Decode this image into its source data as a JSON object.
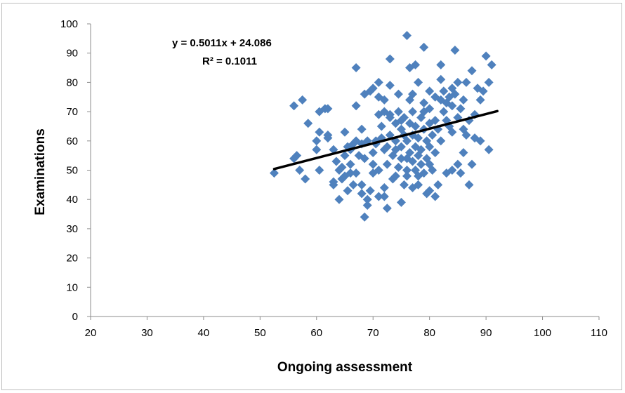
{
  "chart_data": {
    "type": "scatter",
    "xlabel": "Ongoing assessment",
    "ylabel": "Examinations",
    "xlim": [
      20,
      110
    ],
    "ylim": [
      0,
      100
    ],
    "xticks": [
      "20",
      "30",
      "40",
      "50",
      "60",
      "70",
      "80",
      "90",
      "100",
      "110"
    ],
    "yticks": [
      "0",
      "10",
      "20",
      "30",
      "40",
      "50",
      "60",
      "70",
      "80",
      "90",
      "100"
    ],
    "grid": false,
    "marker_color": "#4f81bd",
    "trendline_color": "#000000",
    "trendline": {
      "slope": 0.5011,
      "intercept": 24.086,
      "x_range": [
        52.5,
        92
      ]
    },
    "annotations": {
      "equation": "y = 0.5011x + 24.086",
      "r2": "R² = 0.1011"
    },
    "points": [
      [
        52.5,
        49
      ],
      [
        56,
        54
      ],
      [
        56,
        72
      ],
      [
        56.5,
        55
      ],
      [
        57,
        50
      ],
      [
        57.5,
        74
      ],
      [
        58,
        47
      ],
      [
        58.5,
        66
      ],
      [
        60,
        57
      ],
      [
        60,
        60
      ],
      [
        60.5,
        63
      ],
      [
        60.5,
        70
      ],
      [
        60.5,
        50
      ],
      [
        61.5,
        71
      ],
      [
        62,
        61
      ],
      [
        62,
        62
      ],
      [
        63,
        45
      ],
      [
        63,
        46
      ],
      [
        63.5,
        53
      ],
      [
        64,
        40
      ],
      [
        64,
        50
      ],
      [
        64.5,
        51
      ],
      [
        64.5,
        47
      ],
      [
        65,
        63
      ],
      [
        65,
        55
      ],
      [
        65,
        48
      ],
      [
        65.5,
        58
      ],
      [
        65.5,
        43
      ],
      [
        66,
        57
      ],
      [
        66,
        52
      ],
      [
        66.5,
        45
      ],
      [
        66.5,
        59
      ],
      [
        67,
        60
      ],
      [
        67,
        72
      ],
      [
        67,
        85
      ],
      [
        67,
        49
      ],
      [
        67.5,
        55
      ],
      [
        68,
        64
      ],
      [
        68,
        42
      ],
      [
        68,
        59
      ],
      [
        68.5,
        34
      ],
      [
        68.5,
        76
      ],
      [
        68.5,
        54
      ],
      [
        69,
        38
      ],
      [
        69,
        40
      ],
      [
        69,
        60
      ],
      [
        69.5,
        77
      ],
      [
        69.5,
        43
      ],
      [
        70,
        49
      ],
      [
        70,
        52
      ],
      [
        70,
        56
      ],
      [
        70,
        78
      ],
      [
        70.5,
        60
      ],
      [
        71,
        80
      ],
      [
        71,
        69
      ],
      [
        71,
        75
      ],
      [
        71,
        50
      ],
      [
        71.5,
        61
      ],
      [
        71.5,
        65
      ],
      [
        72,
        41
      ],
      [
        72,
        44
      ],
      [
        72,
        57
      ],
      [
        72,
        70
      ],
      [
        72,
        74
      ],
      [
        72.5,
        37
      ],
      [
        72.5,
        52
      ],
      [
        72.5,
        58
      ],
      [
        73,
        88
      ],
      [
        73,
        79
      ],
      [
        73,
        69
      ],
      [
        73,
        62
      ],
      [
        73.5,
        47
      ],
      [
        73.5,
        55
      ],
      [
        74,
        57
      ],
      [
        74,
        60
      ],
      [
        74,
        66
      ],
      [
        74,
        48
      ],
      [
        74.5,
        51
      ],
      [
        74.5,
        76
      ],
      [
        75,
        39
      ],
      [
        75,
        54
      ],
      [
        75,
        58
      ],
      [
        75,
        67
      ],
      [
        75.5,
        45
      ],
      [
        75.5,
        62
      ],
      [
        75.5,
        68
      ],
      [
        76,
        54
      ],
      [
        76,
        96
      ],
      [
        76,
        48
      ],
      [
        76,
        60
      ],
      [
        76,
        50
      ],
      [
        76.5,
        85
      ],
      [
        76.5,
        74
      ],
      [
        76.5,
        66
      ],
      [
        76.5,
        56
      ],
      [
        77,
        44
      ],
      [
        77,
        53
      ],
      [
        77,
        62
      ],
      [
        77,
        70
      ],
      [
        77.5,
        58
      ],
      [
        77.5,
        50
      ],
      [
        77.5,
        65
      ],
      [
        77.5,
        86
      ],
      [
        78,
        80
      ],
      [
        78,
        45
      ],
      [
        78,
        55
      ],
      [
        78,
        61
      ],
      [
        78.5,
        52
      ],
      [
        78.5,
        68
      ],
      [
        78.5,
        57
      ],
      [
        79,
        73
      ],
      [
        79,
        92
      ],
      [
        79,
        49
      ],
      [
        79,
        64
      ],
      [
        79.5,
        42
      ],
      [
        79.5,
        54
      ],
      [
        79.5,
        60
      ],
      [
        80,
        43
      ],
      [
        80,
        77
      ],
      [
        80,
        66
      ],
      [
        80,
        58
      ],
      [
        80,
        71
      ],
      [
        80.5,
        50
      ],
      [
        80.5,
        62
      ],
      [
        81,
        75
      ],
      [
        81,
        41
      ],
      [
        81,
        56
      ],
      [
        81,
        67
      ],
      [
        81.5,
        64
      ],
      [
        81.5,
        45
      ],
      [
        82,
        81
      ],
      [
        82,
        74
      ],
      [
        82,
        60
      ],
      [
        82,
        86
      ],
      [
        82.5,
        70
      ],
      [
        82.5,
        77
      ],
      [
        83,
        67
      ],
      [
        83,
        49
      ],
      [
        83,
        73
      ],
      [
        83.5,
        65
      ],
      [
        83.5,
        75
      ],
      [
        84,
        50
      ],
      [
        84,
        78
      ],
      [
        84,
        63
      ],
      [
        84,
        72
      ],
      [
        84.5,
        91
      ],
      [
        84.5,
        76
      ],
      [
        85,
        52
      ],
      [
        85,
        68
      ],
      [
        85,
        80
      ],
      [
        85.5,
        49
      ],
      [
        85.5,
        71
      ],
      [
        86,
        56
      ],
      [
        86,
        74
      ],
      [
        86.5,
        62
      ],
      [
        86.5,
        80
      ],
      [
        87,
        45
      ],
      [
        87,
        67
      ],
      [
        87.5,
        52
      ],
      [
        87.5,
        84
      ],
      [
        88,
        69
      ],
      [
        88,
        61
      ],
      [
        88.5,
        78
      ],
      [
        89,
        74
      ],
      [
        89.5,
        77
      ],
      [
        90,
        89
      ],
      [
        90.5,
        57
      ],
      [
        91,
        86
      ],
      [
        90.5,
        80
      ],
      [
        89,
        60
      ],
      [
        86,
        64
      ],
      [
        79,
        70
      ],
      [
        77,
        76
      ],
      [
        74.5,
        70
      ],
      [
        70.5,
        59
      ],
      [
        68,
        45
      ],
      [
        66,
        49
      ],
      [
        63,
        57
      ],
      [
        62,
        71
      ],
      [
        71,
        41
      ],
      [
        73,
        68
      ],
      [
        75,
        64
      ],
      [
        78,
        48
      ],
      [
        80,
        52
      ]
    ]
  }
}
